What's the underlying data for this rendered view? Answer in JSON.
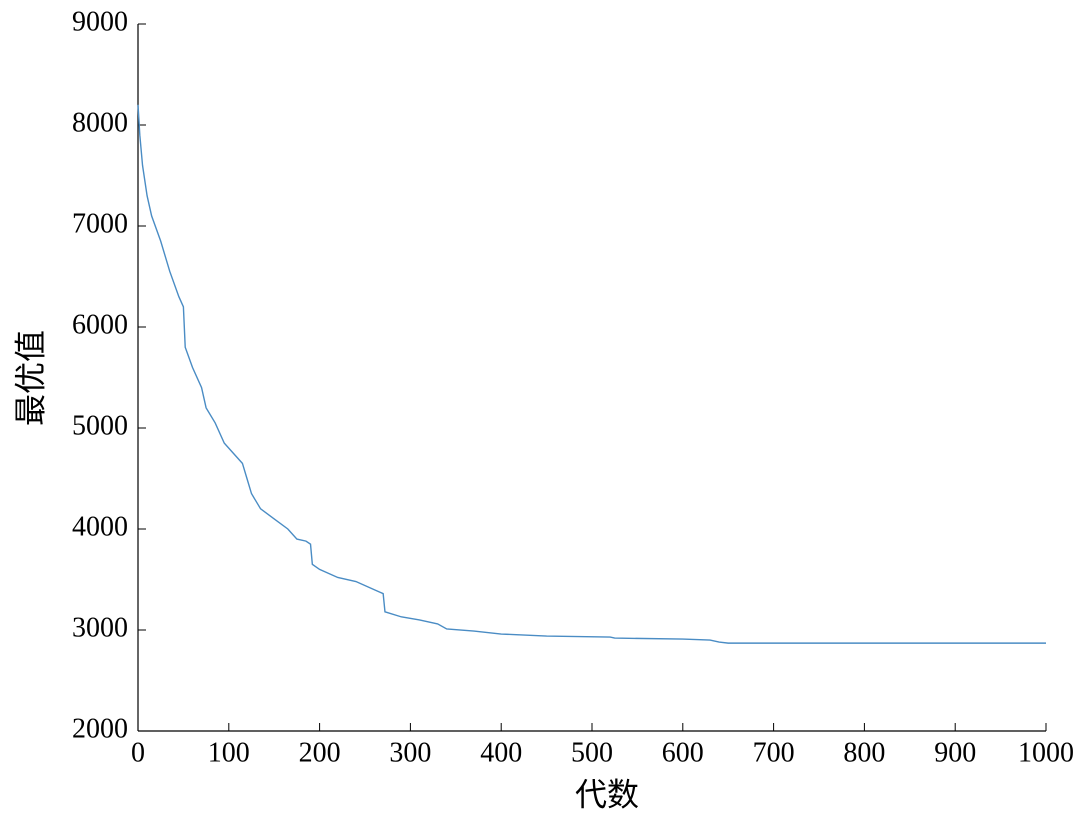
{
  "chart_data": {
    "type": "line",
    "x_label": "代数",
    "y_label": "最优值",
    "x": [
      0,
      2,
      5,
      10,
      15,
      25,
      35,
      45,
      50,
      52,
      60,
      70,
      75,
      85,
      95,
      105,
      115,
      120,
      125,
      135,
      150,
      165,
      175,
      185,
      190,
      192,
      200,
      220,
      240,
      260,
      270,
      272,
      290,
      310,
      330,
      340,
      370,
      400,
      450,
      520,
      525,
      600,
      630,
      640,
      650,
      1000
    ],
    "series": [
      {
        "name": "最优值",
        "color": "#4a8cc4",
        "values": [
          8200,
          7900,
          7600,
          7300,
          7100,
          6850,
          6550,
          6300,
          6200,
          5800,
          5600,
          5400,
          5200,
          5050,
          4850,
          4750,
          4650,
          4500,
          4350,
          4200,
          4100,
          4000,
          3900,
          3880,
          3850,
          3650,
          3600,
          3520,
          3480,
          3400,
          3360,
          3180,
          3130,
          3100,
          3060,
          3010,
          2990,
          2960,
          2940,
          2930,
          2920,
          2910,
          2900,
          2880,
          2870,
          2870
        ]
      }
    ],
    "xlim": [
      0,
      1000
    ],
    "xticks": [
      0,
      100,
      200,
      300,
      400,
      500,
      600,
      700,
      800,
      900,
      1000
    ],
    "ylim": [
      2000,
      9000
    ],
    "yticks": [
      2000,
      3000,
      4000,
      5000,
      6000,
      7000,
      8000,
      9000
    ]
  }
}
